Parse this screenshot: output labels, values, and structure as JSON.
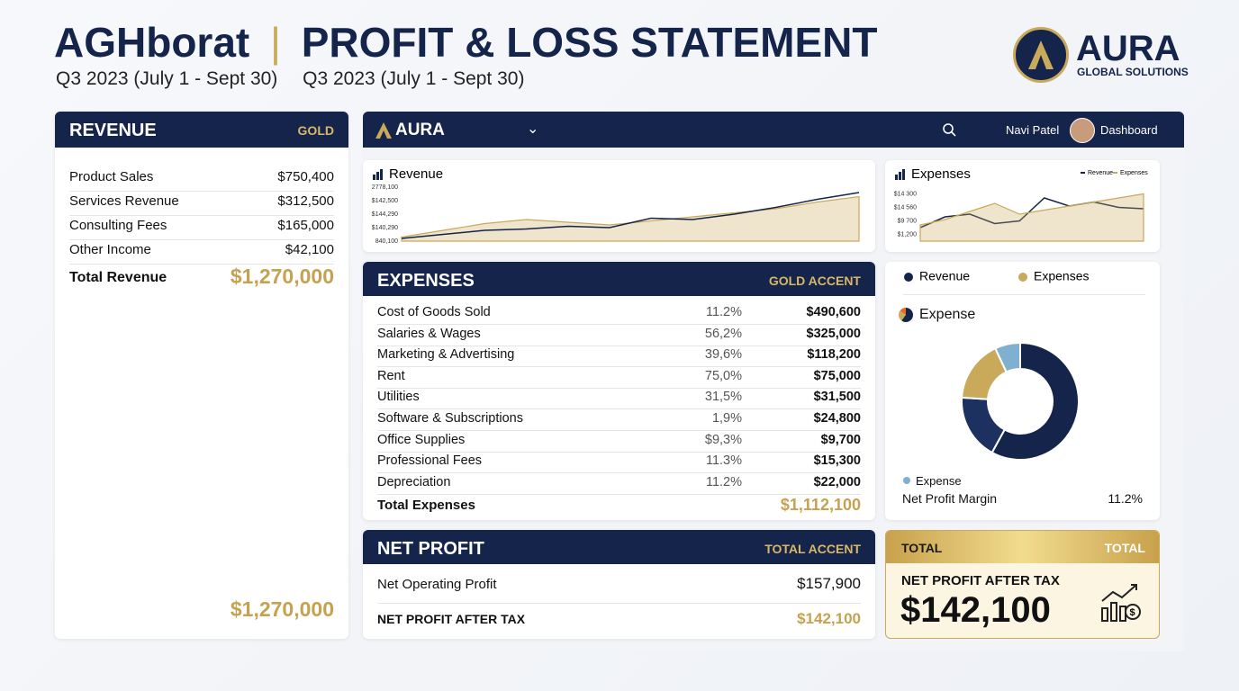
{
  "header": {
    "company": "AGHborat",
    "title": "PROFIT & LOSS STATEMENT",
    "period1": "Q3 2023 (July 1 - Sept 30)",
    "period2": "Q3 2023 (July 1 - Sept 30)",
    "logo_name": "AURA",
    "logo_sub": "GLOBAL SOLUTIONS"
  },
  "revenue": {
    "title": "REVENUE",
    "badge": "GOLD",
    "rows": [
      [
        "Product Sales",
        "$750,400"
      ],
      [
        "Services Revenue",
        "$312,500"
      ],
      [
        "Consulting Fees",
        "$165,000"
      ],
      [
        "Other Income",
        "$42,100"
      ]
    ],
    "total_label": "Total Revenue",
    "total": "$1,270,000",
    "footer_total": "$1,270,000"
  },
  "navbar": {
    "brand": "AURA",
    "user": "Navi Patel",
    "link": "Dashboard"
  },
  "revenue_chart": {
    "type": "line",
    "title": "Revenue",
    "ylim": [
      0,
      4
    ],
    "yticks": [
      {
        "value": 4,
        "label": "2778,100"
      },
      {
        "value": 3,
        "label": "$142,500"
      },
      {
        "value": 2,
        "label": "$144,290"
      },
      {
        "value": 1,
        "label": "$140,290"
      },
      {
        "value": 0,
        "label": "840,100"
      }
    ],
    "series": [
      {
        "color": "#c9a95a",
        "area": true,
        "values": [
          0.3,
          0.8,
          1.3,
          1.6,
          1.4,
          1.2,
          1.5,
          1.8,
          2.1,
          2.4,
          2.9,
          3.3
        ]
      },
      {
        "color": "#14244a",
        "values": [
          0.2,
          0.5,
          0.8,
          0.9,
          1.1,
          1.0,
          1.7,
          1.6,
          2.0,
          2.5,
          3.1,
          3.6
        ]
      }
    ]
  },
  "expenses_chart": {
    "type": "line",
    "title": "Expenses",
    "ylim": [
      0,
      4
    ],
    "yticks": [
      {
        "value": 3.5,
        "label": "$14 300"
      },
      {
        "value": 2.5,
        "label": "$14 560"
      },
      {
        "value": 1.5,
        "label": "$9 700"
      },
      {
        "value": 0.5,
        "label": "$1,200"
      }
    ],
    "series": [
      {
        "name": "Revenue",
        "color": "#14244a",
        "values": [
          1.0,
          1.8,
          2.0,
          1.3,
          1.5,
          3.2,
          2.6,
          2.9,
          2.5,
          2.4
        ]
      },
      {
        "name": "Expenses",
        "color": "#c9a95a",
        "area": true,
        "values": [
          1.2,
          1.6,
          2.2,
          2.8,
          2.0,
          2.3,
          2.6,
          2.9,
          3.2,
          3.5
        ]
      }
    ]
  },
  "expenses": {
    "title": "EXPENSES",
    "badge": "GOLD ACCENT",
    "rows": [
      [
        "Cost of Goods Sold",
        "11.2%",
        "$490,600"
      ],
      [
        "Salaries & Wages",
        "56,2%",
        "$325,000"
      ],
      [
        "Marketing & Advertising",
        "39,6%",
        "$118,200"
      ],
      [
        "Rent",
        "75,0%",
        "$75,000"
      ],
      [
        "Utilities",
        "31,5%",
        "$31,500"
      ],
      [
        "Software & Subscriptions",
        "1,9%",
        "$24,800"
      ],
      [
        "Office Supplies",
        "$9,3%",
        "$9,700"
      ],
      [
        "Professional Fees",
        "11.3%",
        "$15,300"
      ],
      [
        "Depreciation",
        "11.2%",
        "$22,000"
      ]
    ],
    "total_label": "Total Expenses",
    "total": "$1,112,100"
  },
  "donut": {
    "type": "pie",
    "legend": [
      {
        "name": "Revenue",
        "color": "#14244a"
      },
      {
        "name": "Expenses",
        "color": "#c9a95a"
      }
    ],
    "title": "Expense",
    "values": [
      58,
      18,
      17,
      7
    ],
    "colors": [
      "#14244a",
      "#1d3160",
      "#c9a95a",
      "#7fb0cf"
    ],
    "legend_item": "Expense",
    "metric_label": "Net Profit Margin",
    "metric_value": "11.2%"
  },
  "net_profit": {
    "title": "NET PROFIT",
    "badge": "TOTAL ACCENT",
    "rows": [
      [
        "Net Operating Profit",
        "$157,900"
      ],
      [
        "NET PROFIT AFTER TAX",
        "$142,100"
      ]
    ]
  },
  "total_card": {
    "left": "TOTAL",
    "right": "TOTAL",
    "label": "NET PROFIT AFTER TAX",
    "value": "$142,100"
  }
}
